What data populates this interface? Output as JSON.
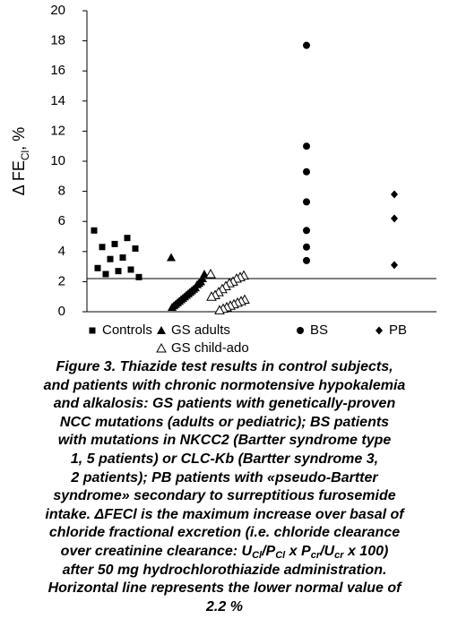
{
  "chart_data": {
    "type": "scatter",
    "ylabel": [
      "Δ FE",
      "Cl",
      ", %"
    ],
    "ylim": [
      0,
      20
    ],
    "yticks": [
      0,
      2,
      4,
      6,
      8,
      10,
      12,
      14,
      16,
      18,
      20
    ],
    "reference_line": 2.2,
    "series": [
      {
        "name": "Controls",
        "marker": "square",
        "color": "#000000",
        "values": [
          5.4,
          4.9,
          4.5,
          4.3,
          4.2,
          3.6,
          3.5,
          2.9,
          2.8,
          2.7,
          2.5,
          2.3
        ]
      },
      {
        "name": "GS adults",
        "marker": "triangle",
        "color": "#000000",
        "values": [
          3.6,
          2.5,
          2.2,
          2.0,
          1.9,
          1.8,
          1.6,
          1.5,
          1.4,
          1.3,
          1.2,
          1.1,
          1.0,
          0.9,
          0.8,
          0.7,
          0.6,
          0.5,
          0.4,
          0.3
        ]
      },
      {
        "name": "GS child-ado",
        "marker": "triangle-open",
        "color": "#000000",
        "values": [
          2.5,
          2.4,
          2.3,
          2.2,
          2.0,
          1.9,
          1.7,
          1.5,
          1.3,
          1.1,
          1.0,
          0.8,
          0.7,
          0.6,
          0.5,
          0.4,
          0.3,
          0.2,
          0.1
        ]
      },
      {
        "name": "BS",
        "marker": "circle",
        "color": "#000000",
        "values": [
          17.7,
          11.0,
          9.3,
          7.3,
          5.4,
          4.3,
          3.4
        ]
      },
      {
        "name": "PB",
        "marker": "diamond",
        "color": "#000000",
        "values": [
          7.8,
          6.2,
          3.1
        ]
      }
    ]
  },
  "caption": [
    "Figure 3. Thiazide test results in control subjects,",
    "and patients with chronic normotensive hypokalemia",
    "and alkalosis: GS patients with genetically-proven",
    "NCC mutations (adults or pediatric); BS patients",
    "with mutations in NKCC2 (Bartter syndrome type",
    "1, 5 patients) or CLC-Kb (Bartter syndrome 3,",
    "2 patients); PB patients with «pseudo-Bartter",
    "syndrome» secondary to surreptitious furosemide",
    "intake. ΔFECl is the maximum increase over basal of",
    "chloride fractional excretion (i.e. chloride clearance",
    {
      "parts": [
        "over creatinine clearance: U",
        "Cl",
        "/P",
        "Cl",
        " x P",
        "cr",
        "/U",
        "cr",
        " x 100)"
      ]
    },
    "after 50 mg hydrochlorothiazide administration.",
    "Horizontal line represents the lower normal value of",
    "2.2 %"
  ]
}
